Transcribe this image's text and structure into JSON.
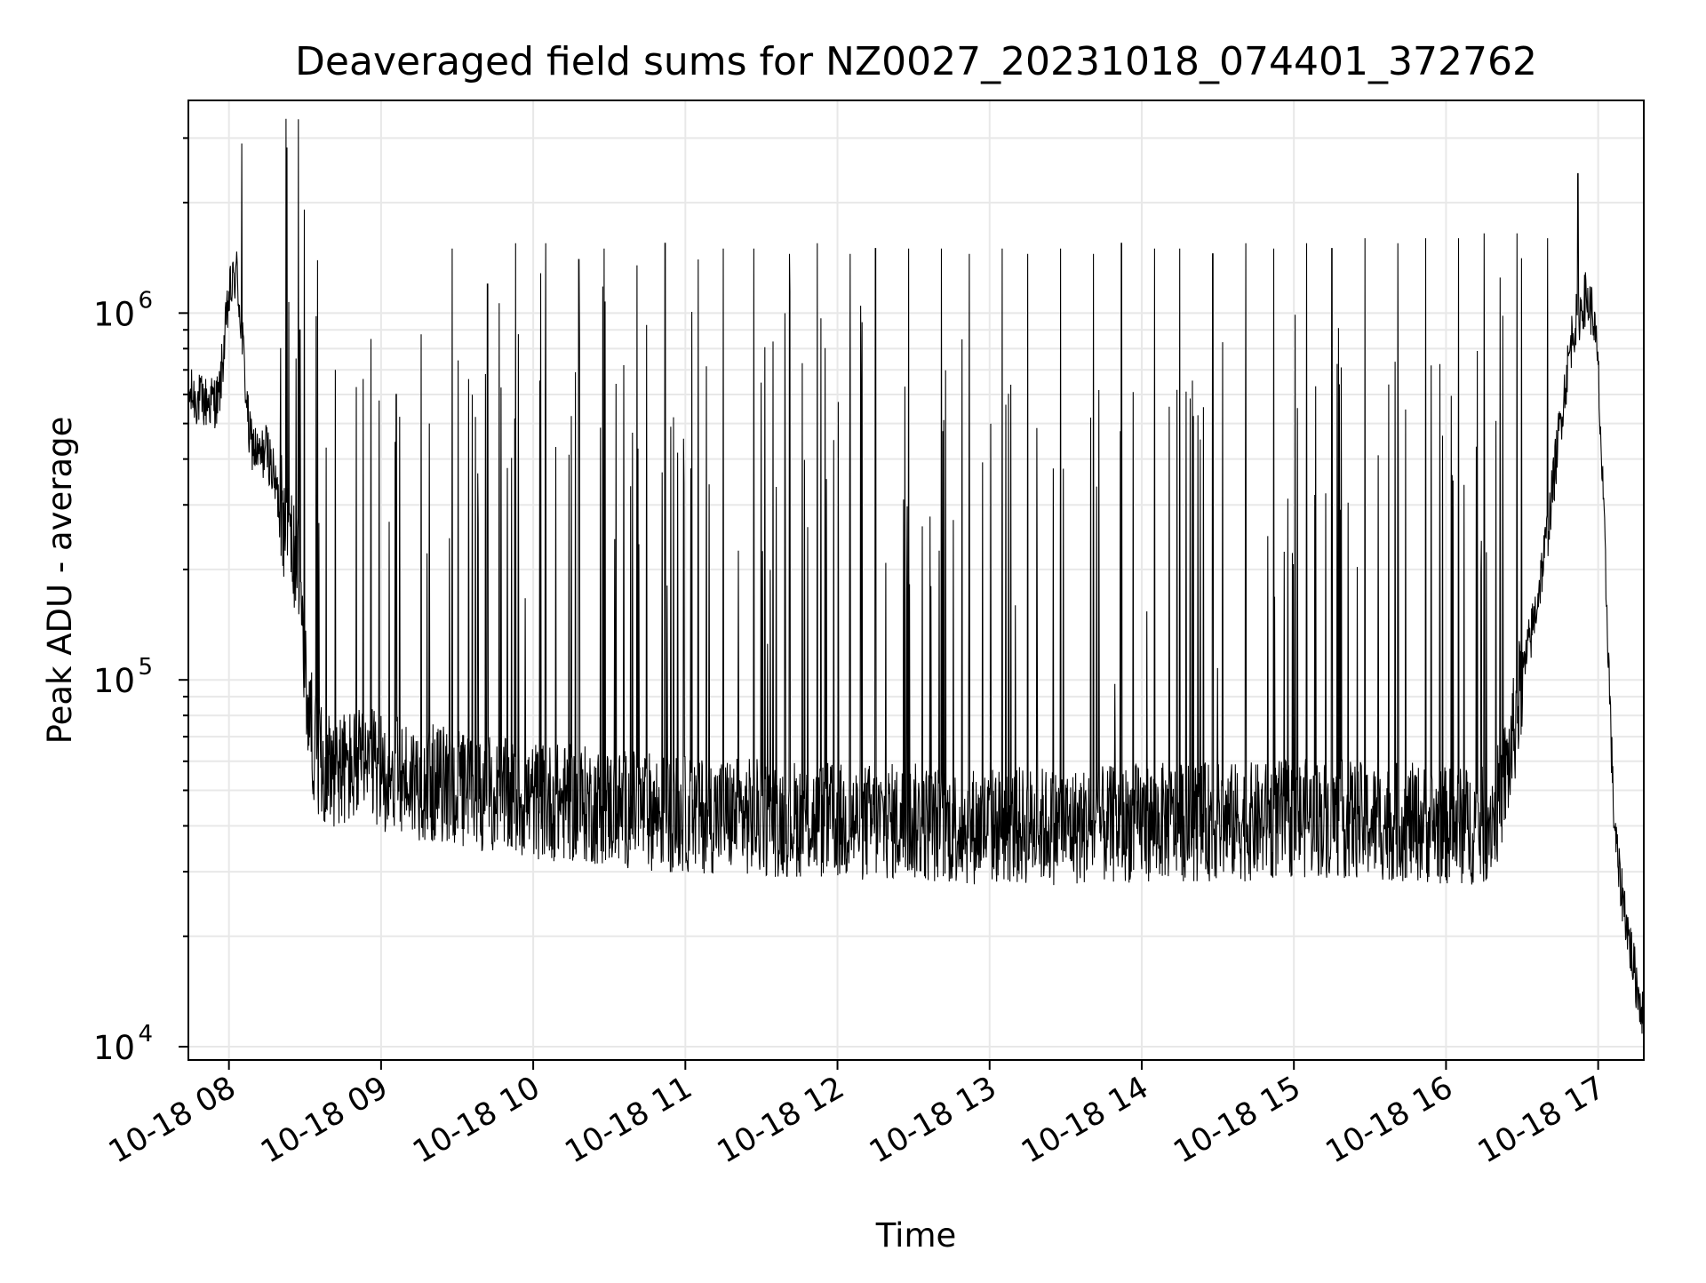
{
  "chart_data": {
    "type": "line",
    "title": "Deaveraged field sums for NZ0027_20231018_074401_372762",
    "xlabel": "Time",
    "ylabel": "Peak ADU - average",
    "y_scale": "log",
    "x_range": [
      "2023-10-18 07:44",
      "2023-10-18 17:18"
    ],
    "ylim": [
      9200,
      3800000
    ],
    "grid": true,
    "line_color": "#000000",
    "x_ticks": [
      {
        "value": "2023-10-18 08:00",
        "label": "10-18 08"
      },
      {
        "value": "2023-10-18 09:00",
        "label": "10-18 09"
      },
      {
        "value": "2023-10-18 10:00",
        "label": "10-18 10"
      },
      {
        "value": "2023-10-18 11:00",
        "label": "10-18 11"
      },
      {
        "value": "2023-10-18 12:00",
        "label": "10-18 12"
      },
      {
        "value": "2023-10-18 13:00",
        "label": "10-18 13"
      },
      {
        "value": "2023-10-18 14:00",
        "label": "10-18 14"
      },
      {
        "value": "2023-10-18 15:00",
        "label": "10-18 15"
      },
      {
        "value": "2023-10-18 16:00",
        "label": "10-18 16"
      },
      {
        "value": "2023-10-18 17:00",
        "label": "10-18 17"
      }
    ],
    "y_ticks": [
      {
        "value": 10000,
        "base": "10",
        "exp": "4"
      },
      {
        "value": 100000,
        "base": "10",
        "exp": "5"
      },
      {
        "value": 1000000,
        "base": "10",
        "exp": "6"
      }
    ],
    "series": [
      {
        "x": [
          "07:44",
          "07:50",
          "07:56",
          "08:00",
          "08:03",
          "08:05",
          "08:08",
          "08:12",
          "08:15",
          "08:20",
          "08:25",
          "08:28",
          "08:30",
          "08:33",
          "08:36",
          "08:40",
          "08:45",
          "08:50",
          "08:55",
          "09:00",
          "09:10",
          "09:20",
          "09:27",
          "09:28",
          "09:35",
          "09:45",
          "09:55",
          "10:00",
          "10:15",
          "10:30",
          "10:45",
          "11:00",
          "11:15",
          "11:30",
          "11:45",
          "12:00",
          "12:15",
          "12:30",
          "12:45",
          "13:00",
          "13:15",
          "13:30",
          "13:45",
          "14:00",
          "14:15",
          "14:30",
          "14:45",
          "15:00",
          "15:15",
          "15:30",
          "15:45",
          "16:00",
          "16:15",
          "16:20",
          "16:25",
          "16:30",
          "16:35",
          "16:40",
          "16:45",
          "16:50",
          "16:55",
          "16:58",
          "17:00",
          "17:02",
          "17:04",
          "17:06",
          "17:08",
          "17:10",
          "17:12",
          "17:15",
          "17:18"
        ],
        "y": [
          600000,
          570000,
          580000,
          1100000,
          1300000,
          900000,
          460000,
          400000,
          430000,
          300000,
          230000,
          180000,
          100000,
          70000,
          60000,
          58000,
          57000,
          58000,
          58000,
          56000,
          54000,
          52000,
          52000,
          50000,
          50000,
          48000,
          47000,
          47000,
          46000,
          45000,
          44000,
          43000,
          43000,
          42000,
          42000,
          41000,
          41000,
          41000,
          40000,
          40000,
          40000,
          40000,
          40000,
          41000,
          41000,
          41000,
          41000,
          42000,
          42000,
          41000,
          41000,
          40000,
          40000,
          45000,
          60000,
          100000,
          150000,
          250000,
          500000,
          900000,
          1100000,
          1000000,
          700000,
          300000,
          120000,
          45000,
          30000,
          25000,
          20000,
          15000,
          12000
        ]
      }
    ],
    "spikes": {
      "x": [
        "08:05",
        "08:28",
        "08:42",
        "08:56",
        "09:06",
        "09:19",
        "09:28",
        "09:42",
        "09:53",
        "10:05",
        "10:18",
        "10:28",
        "10:41",
        "10:52",
        "11:05",
        "11:15",
        "11:27",
        "11:41",
        "11:52",
        "12:05",
        "12:15",
        "12:28",
        "12:41",
        "12:52",
        "13:05",
        "13:15",
        "13:28",
        "13:41",
        "13:52",
        "14:05",
        "14:15",
        "14:28",
        "14:41",
        "14:52",
        "15:05",
        "15:15",
        "15:28",
        "15:41",
        "15:52",
        "16:05",
        "16:15",
        "16:28",
        "16:40",
        "16:52"
      ],
      "y": [
        2900000,
        900000,
        700000,
        850000,
        600000,
        500000,
        1500000,
        1200000,
        1550000,
        1550000,
        1400000,
        1500000,
        1350000,
        1550000,
        1400000,
        1500000,
        1500000,
        1450000,
        1550000,
        1450000,
        1500000,
        1500000,
        1500000,
        1450000,
        1500000,
        1450000,
        1500000,
        1450000,
        1550000,
        1500000,
        1500000,
        1450000,
        1550000,
        1500000,
        1550000,
        1500000,
        1600000,
        1550000,
        1600000,
        1600000,
        1650000,
        1650000,
        1600000,
        2400000
      ]
    }
  }
}
